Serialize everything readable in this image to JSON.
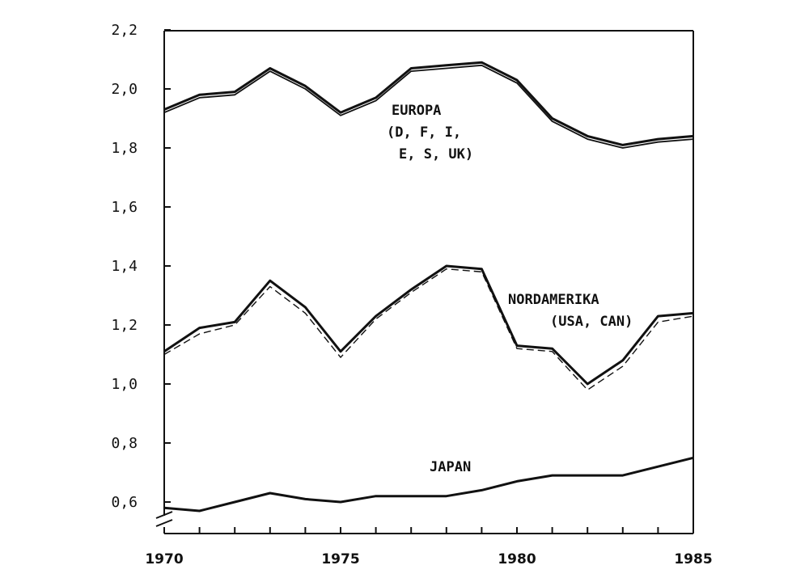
{
  "chart_data": {
    "type": "line",
    "title": "",
    "xlabel": "",
    "ylabel": "",
    "xlim": [
      1970,
      1985
    ],
    "ylim": [
      0.6,
      2.2
    ],
    "x_ticks": [
      "1970",
      "1975",
      "1980",
      "1985"
    ],
    "y_ticks": [
      "0,6",
      "0,8",
      "1,0",
      "1,2",
      "1,4",
      "1,6",
      "1,8",
      "2,0",
      "2,2"
    ],
    "x": [
      1970,
      1971,
      1972,
      1973,
      1974,
      1975,
      1976,
      1977,
      1978,
      1979,
      1980,
      1981,
      1982,
      1983,
      1984,
      1985
    ],
    "series": [
      {
        "values": [
          1.93,
          1.98,
          1.99,
          2.07,
          2.01,
          1.92,
          1.97,
          2.07,
          2.08,
          2.09,
          2.03,
          1.9,
          1.84,
          1.81,
          1.83,
          1.84
        ]
      },
      {
        "values": [
          1.92,
          1.97,
          1.98,
          2.06,
          2.0,
          1.91,
          1.96,
          2.06,
          2.07,
          2.08,
          2.02,
          1.89,
          1.83,
          1.8,
          1.82,
          1.83
        ]
      },
      {
        "values": [
          1.11,
          1.19,
          1.21,
          1.35,
          1.26,
          1.11,
          1.23,
          1.32,
          1.4,
          1.39,
          1.13,
          1.12,
          1.0,
          1.08,
          1.23,
          1.24
        ]
      },
      {
        "values": [
          1.1,
          1.17,
          1.2,
          1.33,
          1.24,
          1.09,
          1.22,
          1.31,
          1.39,
          1.38,
          1.12,
          1.11,
          0.98,
          1.06,
          1.21,
          1.23
        ]
      },
      {
        "values": [
          0.58,
          0.57,
          0.6,
          0.63,
          0.61,
          0.6,
          0.62,
          0.62,
          0.62,
          0.64,
          0.67,
          0.69,
          0.69,
          0.69,
          0.72,
          0.75
        ]
      }
    ],
    "annotations": {
      "europa": [
        "EUROPA",
        "(D, F, I,",
        "E, S, UK)"
      ],
      "nordamerika": [
        "NORDAMERIKA",
        "(USA, CAN)"
      ],
      "japan": [
        "JAPAN"
      ]
    },
    "grid": false
  }
}
